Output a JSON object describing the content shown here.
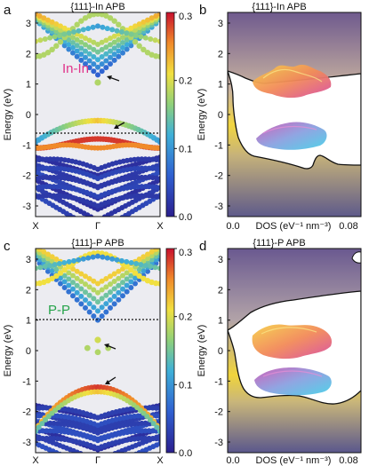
{
  "colors": {
    "bg": "#ececf1",
    "in_label": "#e0338a",
    "p_label": "#26a34a"
  },
  "panels": {
    "a": {
      "letter": "a",
      "title": "{111}-In APB",
      "ylabel": "Energy (eV)",
      "yticks": [
        "-3",
        "-2",
        "-1",
        "0",
        "1",
        "2",
        "3"
      ],
      "xticks": [
        "X",
        "Γ",
        "X"
      ],
      "label": "In-In",
      "colorbar_ticks": [
        "0.0",
        "0.1",
        "0.2",
        "0.3"
      ]
    },
    "b": {
      "letter": "b",
      "title": "{111}-In APB",
      "ylabel": "Energy (eV)",
      "yticks": [
        "-3",
        "-2",
        "-1",
        "0",
        "1",
        "2",
        "3"
      ],
      "xticks": [
        "0.0",
        "0.08"
      ],
      "xlabel": "DOS (eV⁻¹ nm⁻³)"
    },
    "c": {
      "letter": "c",
      "title": "{111}-P APB",
      "ylabel": "Energy (eV)",
      "yticks": [
        "-3",
        "-2",
        "-1",
        "0",
        "1",
        "2",
        "3"
      ],
      "xticks": [
        "X",
        "Γ",
        "X"
      ],
      "label": "P-P",
      "colorbar_ticks": [
        "0.0",
        "0.1",
        "0.2",
        "0.3"
      ]
    },
    "d": {
      "letter": "d",
      "title": "{111}-P APB",
      "ylabel": "Energy (eV)",
      "yticks": [
        "-3",
        "-2",
        "-1",
        "0",
        "1",
        "2",
        "3"
      ],
      "xticks": [
        "0.0",
        "0.08"
      ],
      "xlabel": "DOS (eV⁻¹ nm⁻³)"
    }
  }
}
